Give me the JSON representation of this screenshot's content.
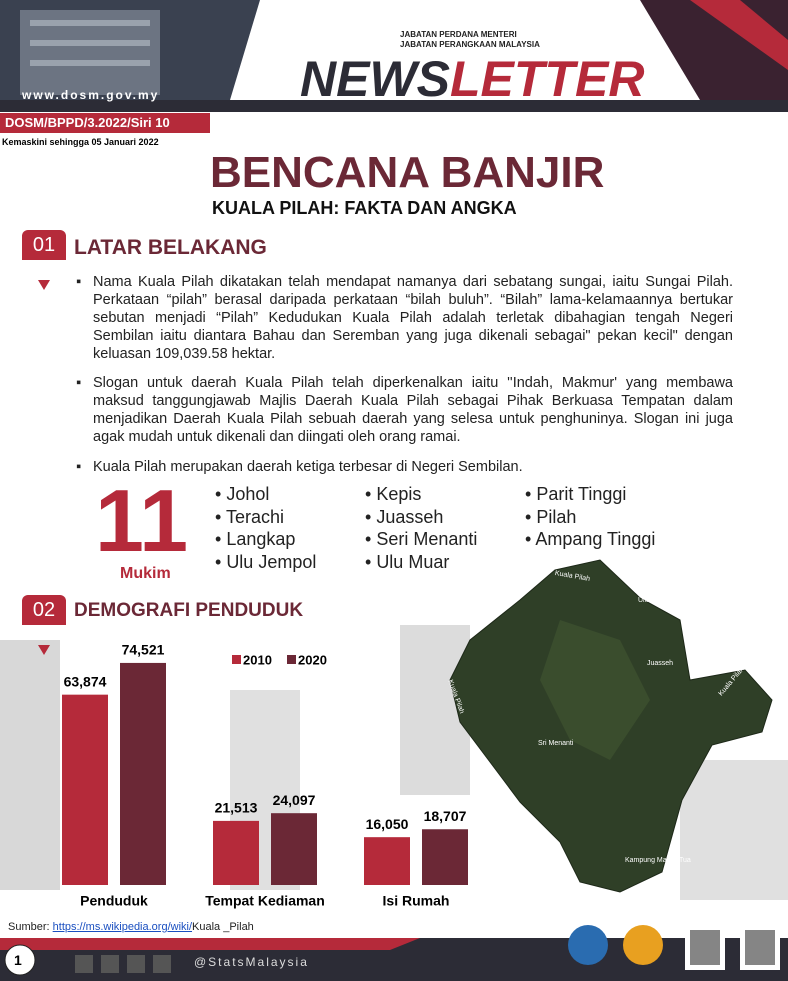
{
  "header": {
    "ministry": "JABATAN PERDANA MENTERI",
    "department": "JABATAN PERANGKAAN MALAYSIA",
    "title_part1": "NEWS",
    "title_part2": "LETTER",
    "website": "www.dosm.gov.my"
  },
  "reference": "DOSM/BPPD/3.2022/Siri 10",
  "updated": "Kemaskini sehingga 05 Januari 2022",
  "title": "BENCANA BANJIR",
  "subtitle": "KUALA PILAH: FAKTA DAN ANGKA",
  "sections": [
    {
      "number": "01",
      "heading": "LATAR BELAKANG",
      "bullets": [
        "Nama Kuala Pilah dikatakan telah mendapat namanya dari sebatang sungai, iaitu Sungai Pilah. Perkataan “pilah” berasal daripada perkataan “bilah buluh”. “Bilah” lama-kelamaannya bertukar sebutan menjadi “Pilah” Kedudukan Kuala Pilah adalah terletak dibahagian tengah Negeri Sembilan iaitu diantara Bahau dan Seremban yang juga dikenali sebagai\" pekan kecil\" dengan keluasan 109,039.58 hektar.",
        "Slogan untuk daerah Kuala Pilah telah diperkenalkan iaitu ''Indah, Makmur' yang membawa maksud tanggungjawab Majlis Daerah Kuala Pilah sebagai Pihak Berkuasa Tempatan dalam menjadikan Daerah Kuala Pilah sebuah daerah yang selesa untuk penghuninya. Slogan ini juga agak mudah untuk dikenali dan diingati oleh orang ramai.",
        "Kuala Pilah merupakan daerah ketiga terbesar di Negeri Sembilan."
      ]
    },
    {
      "number": "02",
      "heading": "DEMOGRAFI PENDUDUK"
    }
  ],
  "mukim": {
    "count": 11,
    "label": "Mukim",
    "names": [
      "Johol",
      "Terachi",
      "Langkap",
      "Ulu Jempol",
      "Kepis",
      "Juasseh",
      "Seri Menanti",
      "Ulu Muar",
      "Parit Tinggi",
      "Pilah",
      "Ampang Tinggi"
    ]
  },
  "chart_data": {
    "type": "bar",
    "categories": [
      "Penduduk",
      "Tempat Kediaman",
      "Isi Rumah"
    ],
    "series": [
      {
        "name": "2010",
        "color": "#b52a3a",
        "values": [
          63874,
          21513,
          16050
        ],
        "value_labels": [
          "63,874",
          "21,513",
          "16,050"
        ]
      },
      {
        "name": "2020",
        "color": "#6b2836",
        "values": [
          74521,
          24097,
          18707
        ],
        "value_labels": [
          "74,521",
          "24,097",
          "18,707"
        ]
      }
    ]
  },
  "map": {
    "labels": [
      "Kuala Pilah",
      "Ulu Muar",
      "Juasseh",
      "Kuala Pilah",
      "Kuala Pilah",
      "Sri Menanti",
      "Kampung Masjid Tua"
    ]
  },
  "source": {
    "label": "Sumber:",
    "url": "https://ms.wikipedia.org/wiki/",
    "rest": "Kuala _Pilah"
  },
  "footer": {
    "page": "1",
    "handle": "@StatsMalaysia"
  }
}
